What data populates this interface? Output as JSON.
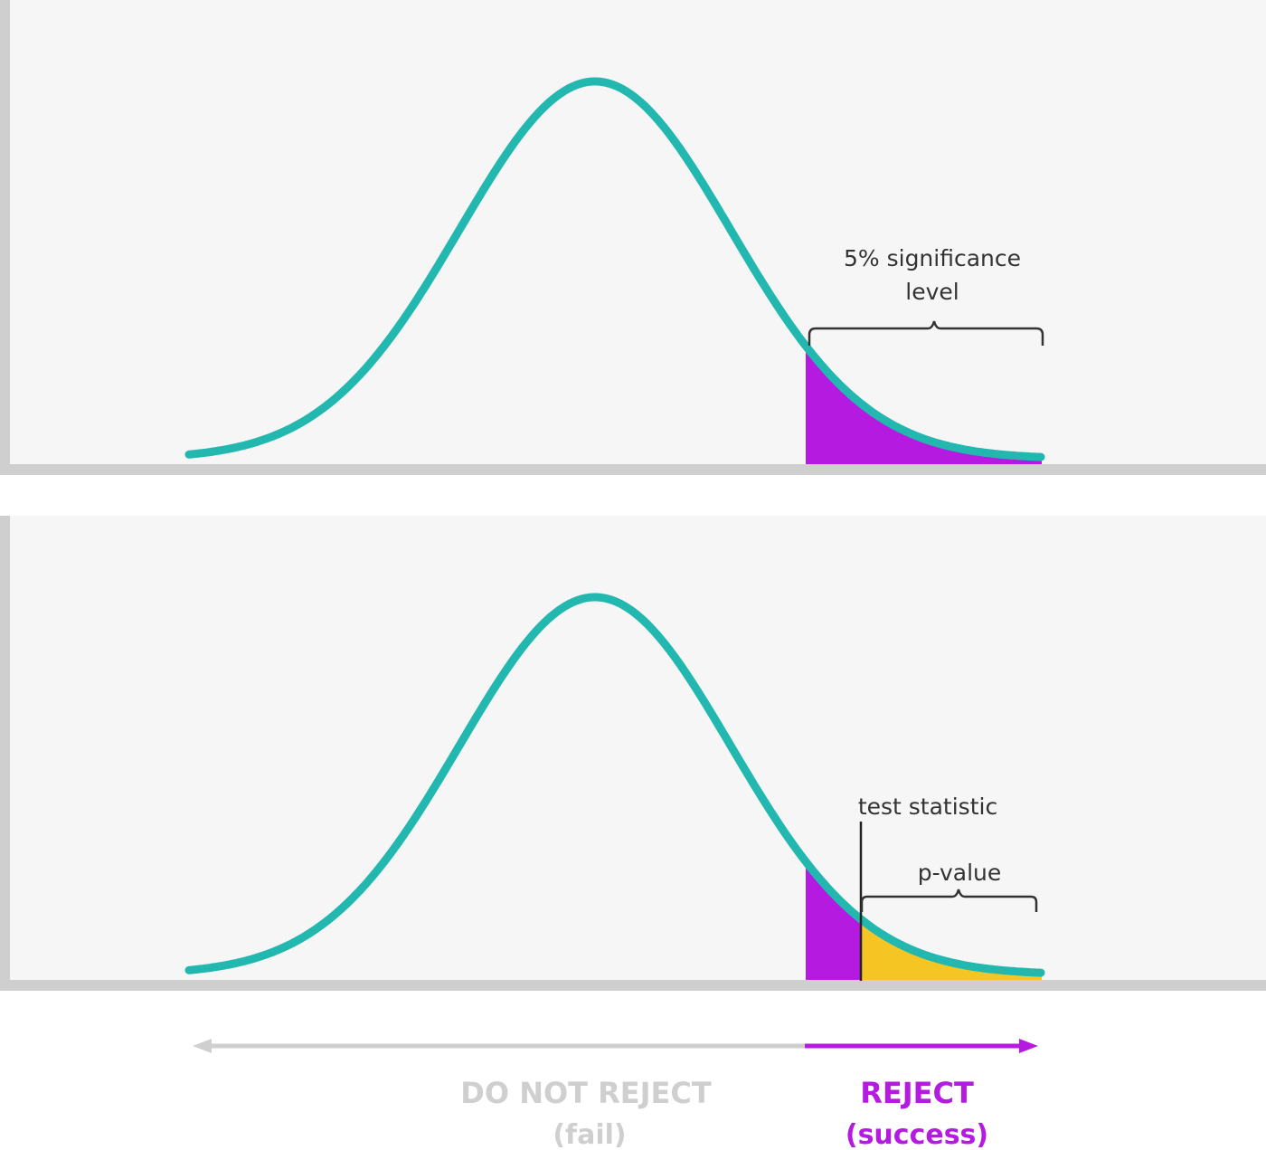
{
  "top_panel": {
    "significance_label_line1": "5% significance",
    "significance_label_line2": "level"
  },
  "bottom_panel": {
    "test_statistic_label": "test statistic",
    "p_value_label": "p-value"
  },
  "decision": {
    "do_not_reject_label": "DO NOT REJECT",
    "do_not_reject_sub": "(fail)",
    "reject_label": "REJECT",
    "reject_sub": "(success)"
  },
  "colors": {
    "curve": "#22b8b0",
    "rejection_region": "#b41adf",
    "p_value_region": "#f5c623",
    "panel_bg": "#f6f6f6",
    "axis": "#cfcfcf",
    "annotation": "#333333",
    "do_not_reject_text": "#cfcfcf",
    "reject_text": "#b41adf"
  }
}
